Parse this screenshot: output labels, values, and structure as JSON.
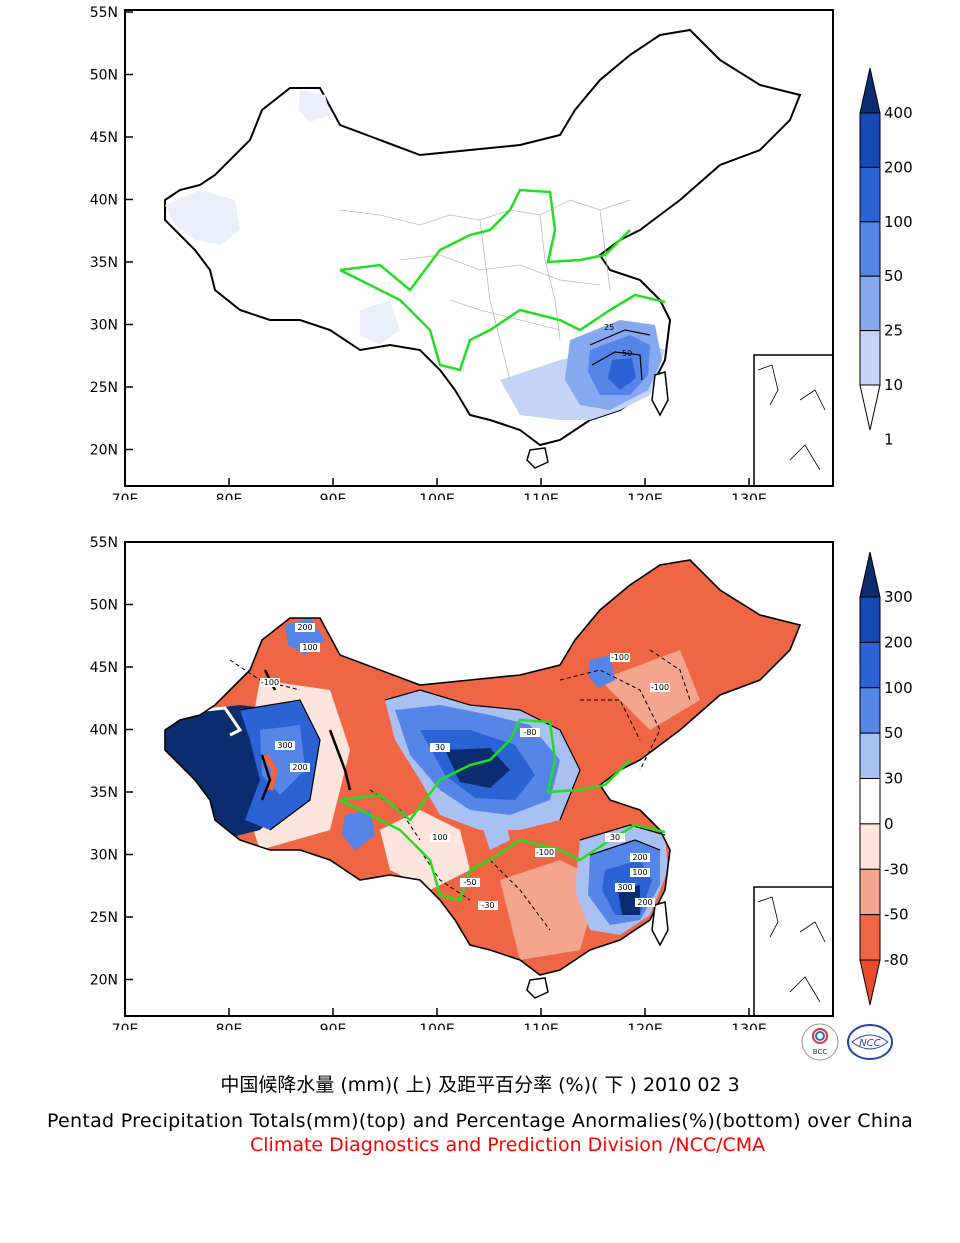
{
  "top_map": {
    "lat_labels": [
      "55N",
      "50N",
      "45N",
      "40N",
      "35N",
      "30N",
      "25N",
      "20N"
    ],
    "lon_labels": [
      "70E",
      "80E",
      "90E",
      "100E",
      "110E",
      "120E",
      "130E"
    ],
    "colorbar": {
      "labels": [
        "400",
        "200",
        "100",
        "50",
        "25",
        "10",
        "1"
      ],
      "colors": [
        "#0b2d6f",
        "#1749b4",
        "#2b62d4",
        "#5585e6",
        "#86a8ef",
        "#c3d4f6",
        "#ffffff"
      ]
    },
    "contour_labels": [
      "25",
      "50"
    ]
  },
  "bottom_map": {
    "lat_labels": [
      "55N",
      "50N",
      "45N",
      "40N",
      "35N",
      "30N",
      "25N",
      "20N"
    ],
    "lon_labels": [
      "70E",
      "80E",
      "90E",
      "100E",
      "110E",
      "120E",
      "130E"
    ],
    "colorbar": {
      "labels": [
        "300",
        "200",
        "100",
        "50",
        "30",
        "0",
        "-30",
        "-50",
        "-80"
      ],
      "colors": [
        "#0b2d6f",
        "#1749b4",
        "#2b62d4",
        "#5585e6",
        "#a9c1f2",
        "#ffffff",
        "#fde4dc",
        "#f4a58d",
        "#ee6644",
        "#e84d2b"
      ]
    },
    "contour_labels": [
      "200",
      "100",
      "-100",
      "300",
      "200",
      "100",
      "-50",
      "-30",
      "-80",
      "-100",
      "-100",
      "200",
      "100",
      "300",
      "200",
      "-100",
      "30",
      "30"
    ]
  },
  "captions": {
    "chinese": "中国候降水量 (mm)( 上) 及距平百分率 (%)( 下 ) 2010 02 3",
    "english": "Pentad Precipitation Totals(mm)(top) and Percentage Anormalies(%)(bottom) over China",
    "credit": "Climate Diagnostics and Prediction Division /NCC/CMA"
  },
  "logos": [
    "BCC",
    "NCC"
  ]
}
